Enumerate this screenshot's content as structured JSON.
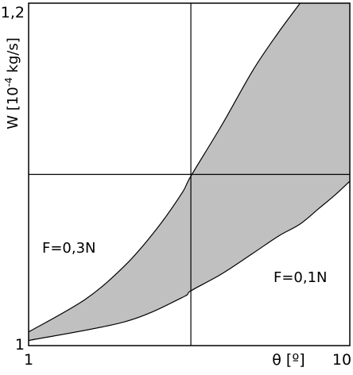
{
  "chart_data": {
    "type": "area",
    "title": "",
    "xlabel": "θ [º]",
    "ylabel_parts": [
      "W [10",
      "-4",
      " kg/s]"
    ],
    "x_scale": "log",
    "xlim": [
      1,
      10
    ],
    "ylim": [
      1,
      1.2
    ],
    "x_ticks": [
      {
        "value": 1,
        "label": "1"
      },
      {
        "value": 10,
        "label": "10"
      }
    ],
    "y_ticks": [
      {
        "value": 1,
        "label": "1"
      },
      {
        "value": 1.2,
        "label": "1,2"
      }
    ],
    "grid_x": [
      3.2
    ],
    "grid_y": [
      1.1
    ],
    "grid": true,
    "legend": "none",
    "fill_color": "#c0c0c0",
    "series": [
      {
        "name": "F=0,3N",
        "x": [
          1,
          1.5,
          2,
          2.5,
          3,
          3.2,
          4,
          5,
          6,
          7,
          8
        ],
        "y": [
          1.008,
          1.027,
          1.047,
          1.068,
          1.089,
          1.099,
          1.129,
          1.161,
          1.183,
          1.2,
          1.215
        ]
      },
      {
        "name": "F=0,1N",
        "x": [
          1,
          2,
          3,
          3.2,
          4,
          5,
          6,
          7,
          8,
          9,
          10
        ],
        "y": [
          1.003,
          1.014,
          1.028,
          1.032,
          1.042,
          1.054,
          1.064,
          1.071,
          1.08,
          1.088,
          1.096
        ]
      }
    ]
  }
}
